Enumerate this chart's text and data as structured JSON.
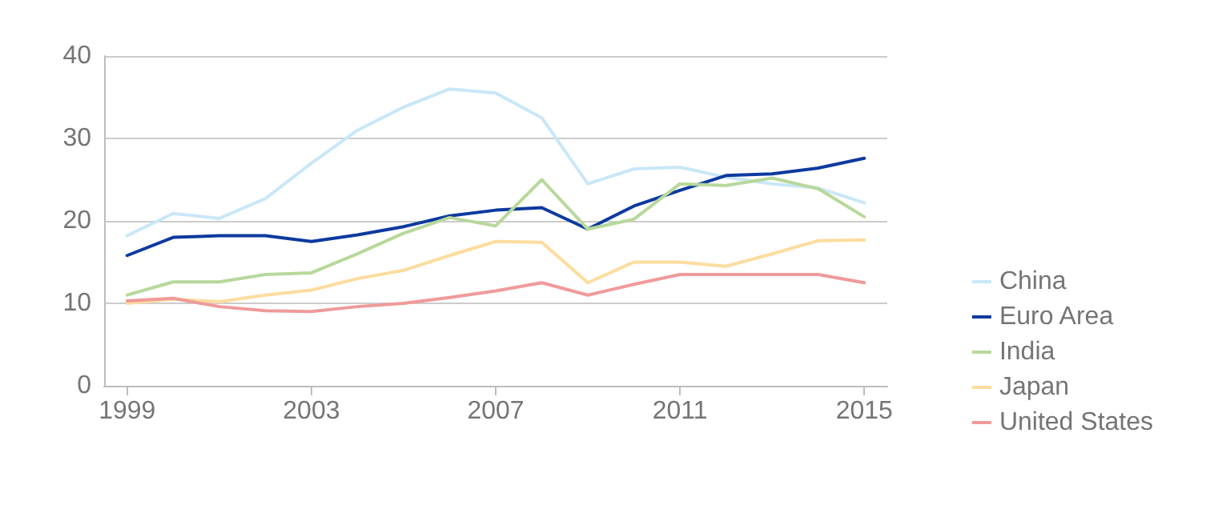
{
  "chart_data": {
    "type": "line",
    "x": [
      1999,
      2000,
      2001,
      2002,
      2003,
      2004,
      2005,
      2006,
      2007,
      2008,
      2009,
      2010,
      2011,
      2012,
      2013,
      2014,
      2015
    ],
    "series": [
      {
        "name": "China",
        "color": "#c9e7f8",
        "values": [
          18.2,
          20.9,
          20.3,
          22.7,
          27,
          31,
          33.8,
          36,
          35.5,
          32.5,
          24.5,
          26.3,
          26.5,
          25.3,
          24.5,
          24,
          22.2
        ]
      },
      {
        "name": "Euro Area",
        "color": "#0d3a9f",
        "values": [
          15.8,
          18,
          18.2,
          18.2,
          17.5,
          18.3,
          19.3,
          20.6,
          21.3,
          21.6,
          19,
          21.8,
          23.7,
          25.5,
          25.7,
          26.4,
          27.6
        ]
      },
      {
        "name": "India",
        "color": "#b7d89b",
        "values": [
          11,
          12.6,
          12.6,
          13.5,
          13.7,
          16,
          18.5,
          20.4,
          19.4,
          25,
          19,
          20.2,
          24.5,
          24.3,
          25.2,
          23.9,
          20.5
        ]
      },
      {
        "name": "Japan",
        "color": "#fddc9e",
        "values": [
          10,
          10.5,
          10.2,
          11,
          11.6,
          13,
          14,
          15.8,
          17.5,
          17.4,
          12.5,
          15,
          15,
          14.5,
          16,
          17.6,
          17.7
        ]
      },
      {
        "name": "United States",
        "color": "#f09a9a",
        "values": [
          10.3,
          10.6,
          9.6,
          9.1,
          9,
          9.6,
          10,
          10.7,
          11.5,
          12.5,
          11,
          12.3,
          13.5,
          13.5,
          13.5,
          13.5,
          12.5
        ]
      }
    ],
    "xlim": [
      1998.5,
      2015.5
    ],
    "xticks": [
      1999,
      2003,
      2007,
      2011,
      2015
    ],
    "ylim": [
      0,
      40
    ],
    "yticks": [
      0,
      10,
      20,
      30,
      40
    ],
    "grid": "y",
    "legend": "right",
    "marker": "none",
    "line_style": "solid"
  }
}
